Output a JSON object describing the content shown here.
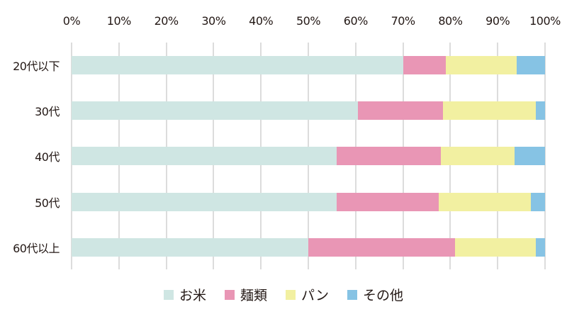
{
  "chart_data": {
    "type": "bar",
    "orientation": "horizontal",
    "stacked": true,
    "normalized": true,
    "title": "",
    "xlabel": "",
    "ylabel": "",
    "xlim": [
      0,
      100
    ],
    "grid": true,
    "legend_position": "bottom",
    "x_ticks": [
      "0%",
      "10%",
      "20%",
      "30%",
      "40%",
      "50%",
      "60%",
      "70%",
      "80%",
      "90%",
      "100%"
    ],
    "categories": [
      "20代以下",
      "30代",
      "40代",
      "50代",
      "60代以上"
    ],
    "series": [
      {
        "name": "お米",
        "color": "#cfe6e3",
        "values": [
          70,
          60.5,
          56,
          56,
          50
        ]
      },
      {
        "name": "麺類",
        "color": "#e996b5",
        "values": [
          9,
          18,
          22,
          21.5,
          31
        ]
      },
      {
        "name": "パン",
        "color": "#f2f0a1",
        "values": [
          15,
          19.5,
          15.5,
          19.5,
          17
        ]
      },
      {
        "name": "その他",
        "color": "#86c3e4",
        "values": [
          6,
          2,
          6.5,
          3,
          2
        ]
      }
    ]
  }
}
